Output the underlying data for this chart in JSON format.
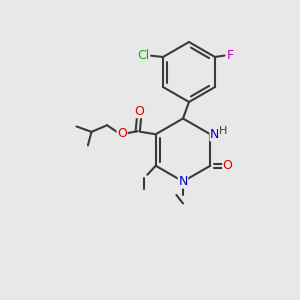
{
  "background_color": "#e8e8e8",
  "bond_color": "#3a3a3a",
  "bond_width": 1.5,
  "atom_colors": {
    "N": "#0000cc",
    "O": "#dd0000",
    "Cl": "#00bb00",
    "F": "#cc00cc",
    "H": "#3a3a3a"
  },
  "font_size": 9
}
